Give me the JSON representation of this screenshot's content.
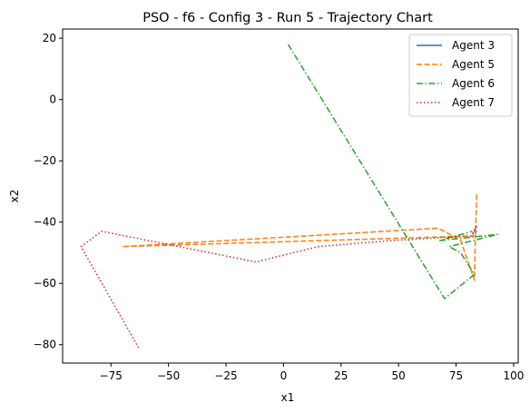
{
  "chart_data": {
    "type": "line",
    "title": "PSO - f6 - Config 3 - Run 5 - Trajectory Chart",
    "xlabel": "x1",
    "ylabel": "x2",
    "xlim": [
      -96,
      102
    ],
    "ylim": [
      -86,
      23
    ],
    "xticks": [
      -75,
      -50,
      -25,
      0,
      25,
      50,
      75,
      100
    ],
    "yticks": [
      20,
      0,
      -20,
      -40,
      -60,
      -80
    ],
    "grid": false,
    "legend_position": "top-right",
    "series": [
      {
        "name": "Agent 3",
        "color": "#1f77b4",
        "dash": "solid",
        "points": [
          [
            83,
            -43.5
          ],
          [
            84,
            -43
          ]
        ]
      },
      {
        "name": "Agent 5",
        "color": "#ff7f0e",
        "dash": "dashed",
        "points": [
          [
            84,
            -31
          ],
          [
            83.5,
            -42
          ],
          [
            83,
            -59
          ],
          [
            77,
            -46
          ],
          [
            70,
            -43
          ],
          [
            67,
            -42
          ],
          [
            -70,
            -48
          ],
          [
            83,
            -44.5
          ]
        ]
      },
      {
        "name": "Agent 6",
        "color": "#2ca02c",
        "dash": "dashdot",
        "points": [
          [
            2,
            18
          ],
          [
            70,
            -65
          ],
          [
            83,
            -57
          ],
          [
            77,
            -50
          ],
          [
            72,
            -48
          ],
          [
            93,
            -44
          ],
          [
            68,
            -46
          ],
          [
            82,
            -43
          ]
        ]
      },
      {
        "name": "Agent 7",
        "color": "#d62728",
        "dash": "dotted",
        "points": [
          [
            -63,
            -81
          ],
          [
            -88,
            -48
          ],
          [
            -79,
            -43
          ],
          [
            -12,
            -53
          ],
          [
            15,
            -48
          ],
          [
            47,
            -46
          ],
          [
            70,
            -45
          ],
          [
            82,
            -44.5
          ],
          [
            84,
            -41
          ],
          [
            82,
            -44
          ]
        ]
      }
    ]
  }
}
